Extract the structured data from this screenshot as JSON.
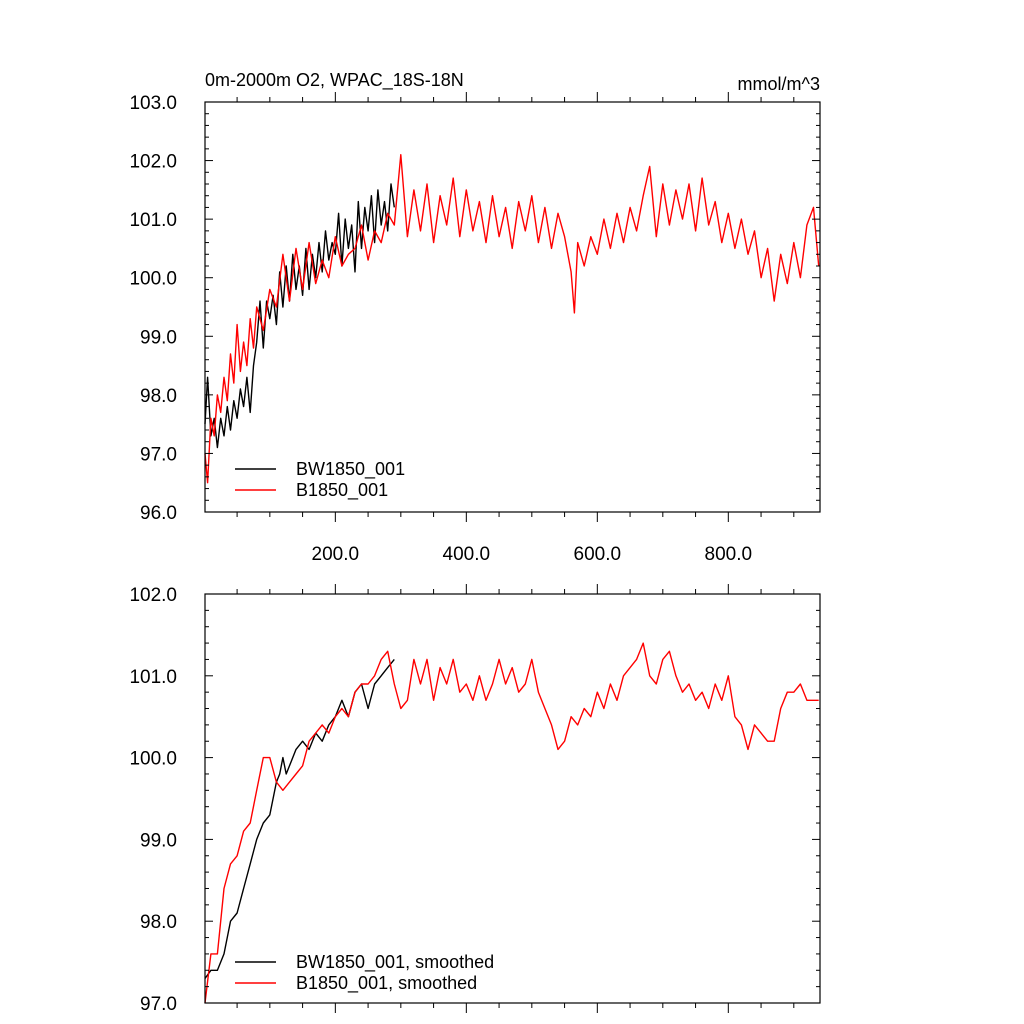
{
  "chart_data": [
    {
      "type": "line",
      "title": "0m-2000m O2, WPAC_18S-18N",
      "units": "mmol/m^3",
      "xlim": [
        1,
        940
      ],
      "ylim": [
        96.0,
        103.0
      ],
      "x_ticks": [
        200,
        400,
        600,
        800
      ],
      "x_tick_labels": [
        "200.0",
        "400.0",
        "600.0",
        "800.0"
      ],
      "y_ticks": [
        96,
        97,
        98,
        99,
        100,
        101,
        102,
        103
      ],
      "y_tick_labels": [
        "96.0",
        "97.0",
        "98.0",
        "99.0",
        "100.0",
        "101.0",
        "102.0",
        "103.0"
      ],
      "legend_position": "bottom-left",
      "series": [
        {
          "name": "BW1850_001",
          "color": "#000000",
          "x": [
            1,
            5,
            10,
            15,
            20,
            25,
            30,
            35,
            40,
            45,
            50,
            55,
            60,
            65,
            70,
            75,
            80,
            85,
            90,
            95,
            100,
            105,
            110,
            115,
            120,
            125,
            130,
            135,
            140,
            145,
            150,
            155,
            160,
            165,
            170,
            175,
            180,
            185,
            190,
            195,
            200,
            205,
            210,
            215,
            220,
            225,
            230,
            235,
            240,
            245,
            250,
            255,
            260,
            265,
            270,
            275,
            280,
            285,
            290
          ],
          "y": [
            97.5,
            98.3,
            97.3,
            97.6,
            97.1,
            97.6,
            97.3,
            97.8,
            97.4,
            97.9,
            97.6,
            98.1,
            97.8,
            98.3,
            97.7,
            98.5,
            98.9,
            99.6,
            98.8,
            99.6,
            99.3,
            99.7,
            99.2,
            100.1,
            99.5,
            100.2,
            99.6,
            100.4,
            99.8,
            100.2,
            99.7,
            100.5,
            99.8,
            100.4,
            100.0,
            100.6,
            100.1,
            100.8,
            100.3,
            100.6,
            100.4,
            101.1,
            100.2,
            101.0,
            100.5,
            100.9,
            100.1,
            101.3,
            100.5,
            101.2,
            100.8,
            101.4,
            100.6,
            101.5,
            100.9,
            101.3,
            100.8,
            101.6,
            101.2
          ]
        },
        {
          "name": "B1850_001",
          "color": "#ff0000",
          "x": [
            1,
            5,
            10,
            15,
            20,
            25,
            30,
            35,
            40,
            45,
            50,
            55,
            60,
            65,
            70,
            75,
            80,
            90,
            100,
            110,
            120,
            130,
            140,
            150,
            160,
            170,
            180,
            190,
            200,
            210,
            220,
            230,
            240,
            250,
            260,
            270,
            280,
            290,
            300,
            310,
            320,
            330,
            340,
            350,
            360,
            370,
            380,
            390,
            400,
            410,
            420,
            430,
            440,
            450,
            460,
            470,
            480,
            490,
            500,
            510,
            520,
            530,
            540,
            550,
            560,
            565,
            570,
            580,
            590,
            600,
            610,
            620,
            630,
            640,
            650,
            660,
            670,
            680,
            690,
            700,
            710,
            720,
            730,
            740,
            750,
            760,
            770,
            780,
            790,
            800,
            810,
            820,
            830,
            840,
            850,
            860,
            870,
            880,
            890,
            900,
            910,
            920,
            930,
            938
          ],
          "y": [
            97.0,
            96.5,
            97.6,
            97.3,
            98.0,
            97.7,
            98.3,
            97.9,
            98.7,
            98.2,
            99.2,
            98.4,
            98.9,
            98.5,
            99.3,
            98.8,
            99.5,
            99.1,
            99.8,
            99.5,
            100.4,
            99.6,
            100.5,
            99.8,
            100.6,
            99.9,
            100.3,
            100.0,
            100.7,
            100.2,
            100.4,
            100.5,
            100.9,
            100.3,
            100.8,
            100.6,
            101.1,
            100.9,
            102.1,
            100.7,
            101.5,
            100.8,
            101.6,
            100.6,
            101.4,
            100.9,
            101.7,
            100.7,
            101.5,
            100.8,
            101.3,
            100.6,
            101.4,
            100.7,
            101.2,
            100.5,
            101.3,
            100.8,
            101.4,
            100.6,
            101.2,
            100.5,
            101.1,
            100.7,
            100.1,
            99.4,
            100.6,
            100.2,
            100.7,
            100.4,
            101.0,
            100.5,
            101.1,
            100.6,
            101.2,
            100.8,
            101.4,
            101.9,
            100.7,
            101.6,
            100.9,
            101.5,
            101.0,
            101.6,
            100.8,
            101.7,
            100.9,
            101.3,
            100.6,
            101.1,
            100.5,
            101.0,
            100.4,
            100.8,
            100.0,
            100.5,
            99.6,
            100.4,
            99.9,
            100.6,
            100.0,
            100.9,
            101.2,
            100.2
          ]
        }
      ]
    },
    {
      "type": "line",
      "xlim": [
        1,
        940
      ],
      "ylim": [
        97.0,
        102.0
      ],
      "y_ticks": [
        97,
        98,
        99,
        100,
        101,
        102
      ],
      "y_tick_labels": [
        "97.0",
        "98.0",
        "99.0",
        "100.0",
        "101.0",
        "102.0"
      ],
      "legend_position": "bottom-left",
      "series": [
        {
          "name": "BW1850_001, smoothed",
          "color": "#000000",
          "x": [
            1,
            10,
            20,
            30,
            40,
            50,
            60,
            70,
            80,
            90,
            100,
            110,
            115,
            120,
            125,
            130,
            140,
            150,
            160,
            170,
            180,
            190,
            200,
            210,
            220,
            230,
            240,
            250,
            260,
            270,
            280,
            290
          ],
          "y": [
            97.3,
            97.4,
            97.4,
            97.6,
            98.0,
            98.1,
            98.4,
            98.7,
            99.0,
            99.2,
            99.3,
            99.7,
            99.8,
            100.0,
            99.8,
            99.9,
            100.1,
            100.2,
            100.1,
            100.3,
            100.2,
            100.4,
            100.5,
            100.7,
            100.5,
            100.8,
            100.9,
            100.6,
            100.9,
            101.0,
            101.1,
            101.2
          ]
        },
        {
          "name": "B1850_001, smoothed",
          "color": "#ff0000",
          "x": [
            1,
            10,
            20,
            30,
            40,
            50,
            60,
            70,
            80,
            90,
            100,
            110,
            120,
            130,
            140,
            150,
            160,
            170,
            180,
            190,
            200,
            210,
            220,
            230,
            240,
            250,
            260,
            270,
            280,
            290,
            300,
            310,
            320,
            330,
            340,
            350,
            360,
            370,
            380,
            390,
            400,
            410,
            420,
            430,
            440,
            450,
            460,
            470,
            480,
            490,
            500,
            510,
            520,
            530,
            540,
            550,
            560,
            570,
            580,
            590,
            600,
            610,
            620,
            630,
            640,
            650,
            660,
            670,
            680,
            690,
            700,
            710,
            720,
            730,
            740,
            750,
            760,
            770,
            780,
            790,
            800,
            810,
            820,
            830,
            840,
            850,
            860,
            870,
            880,
            890,
            900,
            910,
            920,
            930,
            938
          ],
          "y": [
            97.0,
            97.6,
            97.6,
            98.4,
            98.7,
            98.8,
            99.1,
            99.2,
            99.6,
            100.0,
            100.0,
            99.7,
            99.6,
            99.7,
            99.8,
            99.9,
            100.2,
            100.3,
            100.4,
            100.3,
            100.5,
            100.6,
            100.5,
            100.8,
            100.9,
            100.9,
            101.0,
            101.2,
            101.3,
            100.9,
            100.6,
            100.7,
            101.2,
            100.9,
            101.2,
            100.7,
            101.1,
            100.9,
            101.2,
            100.8,
            100.9,
            100.7,
            101.0,
            100.7,
            100.9,
            101.2,
            100.9,
            101.1,
            100.8,
            100.9,
            101.2,
            100.8,
            100.6,
            100.4,
            100.1,
            100.2,
            100.5,
            100.4,
            100.6,
            100.5,
            100.8,
            100.6,
            100.9,
            100.7,
            101.0,
            101.1,
            101.2,
            101.4,
            101.0,
            100.9,
            101.2,
            101.3,
            101.0,
            100.8,
            100.9,
            100.7,
            100.8,
            100.6,
            100.9,
            100.7,
            101.0,
            100.5,
            100.4,
            100.1,
            100.4,
            100.3,
            100.2,
            100.2,
            100.6,
            100.8,
            100.8,
            100.9,
            100.7,
            100.7,
            100.7
          ]
        }
      ]
    }
  ]
}
